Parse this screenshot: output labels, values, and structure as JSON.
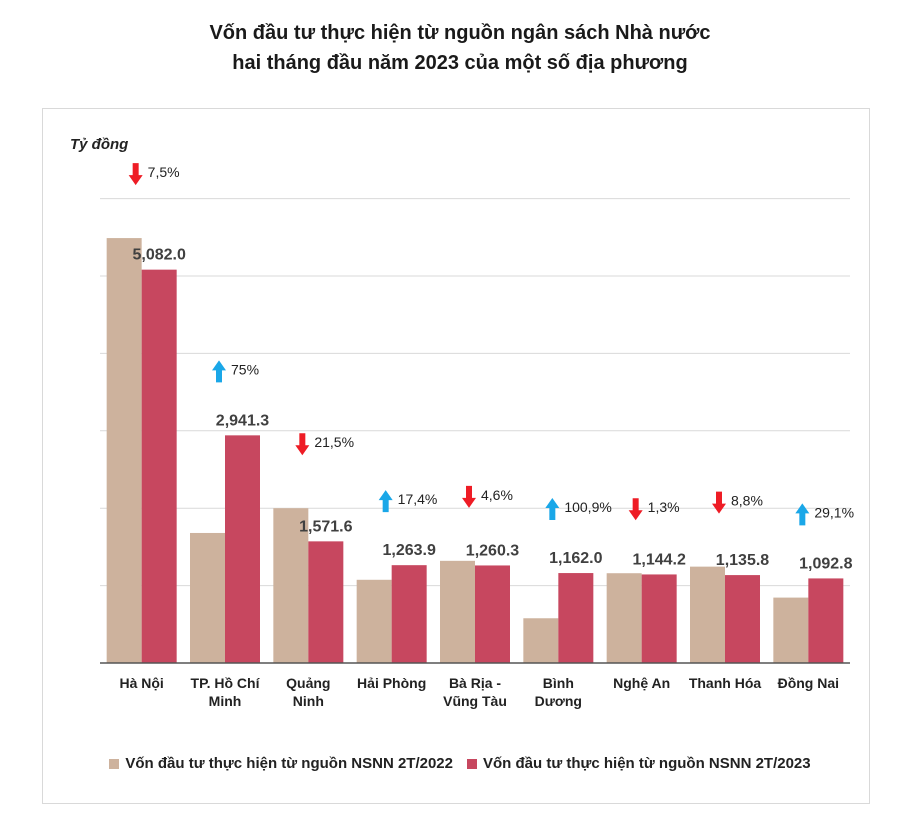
{
  "title": {
    "line1": "Vốn đầu tư thực hiện từ nguồn ngân sách Nhà nước",
    "line2": "hai tháng đầu năm 2023 của một số địa phương"
  },
  "colors": {
    "series_2022": "#cdb29d",
    "series_2023": "#c7475f",
    "arrow_down": "#ee1c25",
    "arrow_up": "#1aa7e8",
    "grid": "#d9d9d9",
    "axis": "#555555"
  },
  "chart_data": {
    "type": "bar",
    "ylabel": "Tỷ đồng",
    "ylim": [
      0,
      5500
    ],
    "y_gridlines": [
      0,
      1000,
      2000,
      3000,
      4000,
      5000,
      6000
    ],
    "grid": true,
    "legend_position": "bottom",
    "categories": [
      [
        "Hà Nội"
      ],
      [
        "TP. Hồ Chí",
        "Minh"
      ],
      [
        "Quảng",
        "Ninh"
      ],
      [
        "Hải Phòng"
      ],
      [
        "Bà Rịa -",
        "Vũng Tàu"
      ],
      [
        "Bình",
        "Dương"
      ],
      [
        "Nghệ An"
      ],
      [
        "Thanh Hóa"
      ],
      [
        "Đồng Nai"
      ]
    ],
    "series": [
      {
        "name": "Vốn đầu tư thực hiện từ nguồn NSNN 2T/2022",
        "values": [
          5490,
          1680,
          2000,
          1075,
          1320,
          578,
          1160,
          1245,
          845
        ]
      },
      {
        "name": "Vốn đầu tư thực hiện từ nguồn NSNN 2T/2023",
        "values": [
          5082.0,
          2941.3,
          1571.6,
          1263.9,
          1260.3,
          1162.0,
          1144.2,
          1135.8,
          1092.8
        ],
        "labels": [
          "5,082.0",
          "2,941.3",
          "1,571.6",
          "1,263.9",
          "1,260.3",
          "1,162.0",
          "1,144.2",
          "1,135.8",
          "1,092.8"
        ]
      }
    ],
    "changes": [
      {
        "direction": "down",
        "text": "7,5%"
      },
      {
        "direction": "up",
        "text": "75%"
      },
      {
        "direction": "down",
        "text": "21,5%"
      },
      {
        "direction": "up",
        "text": "17,4%"
      },
      {
        "direction": "down",
        "text": "4,6%"
      },
      {
        "direction": "up",
        "text": "100,9%"
      },
      {
        "direction": "down",
        "text": "1,3%"
      },
      {
        "direction": "down",
        "text": "8,8%"
      },
      {
        "direction": "up",
        "text": "29,1%"
      }
    ]
  }
}
